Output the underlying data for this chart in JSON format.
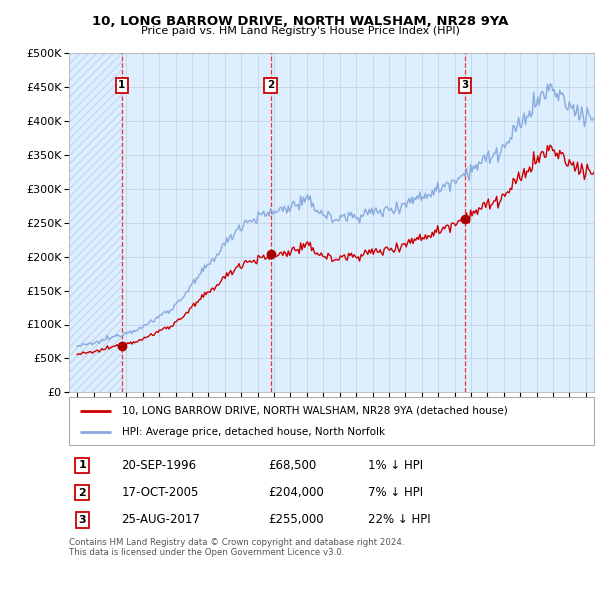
{
  "title": "10, LONG BARROW DRIVE, NORTH WALSHAM, NR28 9YA",
  "subtitle": "Price paid vs. HM Land Registry's House Price Index (HPI)",
  "ylim": [
    0,
    500000
  ],
  "yticks": [
    0,
    50000,
    100000,
    150000,
    200000,
    250000,
    300000,
    350000,
    400000,
    450000,
    500000
  ],
  "ytick_labels": [
    "£0",
    "£50K",
    "£100K",
    "£150K",
    "£200K",
    "£250K",
    "£300K",
    "£350K",
    "£400K",
    "£450K",
    "£500K"
  ],
  "sales": [
    {
      "date": 1996.72,
      "price": 68500,
      "label": "1"
    },
    {
      "date": 2005.79,
      "price": 204000,
      "label": "2"
    },
    {
      "date": 2017.65,
      "price": 255000,
      "label": "3"
    }
  ],
  "sale_vline_color": "#ee3333",
  "sale_dot_color": "#aa0000",
  "hpi_color": "#88aadd",
  "price_line_color": "#cc0000",
  "legend_label_price": "10, LONG BARROW DRIVE, NORTH WALSHAM, NR28 9YA (detached house)",
  "legend_label_hpi": "HPI: Average price, detached house, North Norfolk",
  "table_rows": [
    {
      "num": "1",
      "date": "20-SEP-1996",
      "price": "£68,500",
      "hpi": "1% ↓ HPI"
    },
    {
      "num": "2",
      "date": "17-OCT-2005",
      "price": "£204,000",
      "hpi": "7% ↓ HPI"
    },
    {
      "num": "3",
      "date": "25-AUG-2017",
      "price": "£255,000",
      "hpi": "22% ↓ HPI"
    }
  ],
  "footer": "Contains HM Land Registry data © Crown copyright and database right 2024.\nThis data is licensed under the Open Government Licence v3.0.",
  "bg_color": "#ddeeff",
  "hatch_color": "#c8d8ec",
  "grid_color": "#c0cfe0",
  "xmin": 1993.5,
  "xmax": 2025.5
}
